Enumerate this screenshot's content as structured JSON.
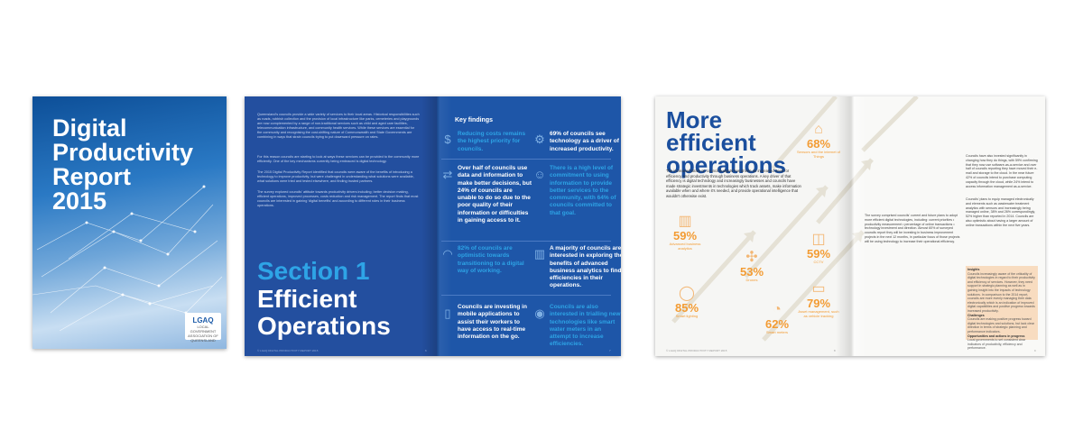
{
  "cover": {
    "title_lines": [
      "Digital",
      "Productivity",
      "Report",
      "2015"
    ],
    "logo_text": "LGAQ",
    "logo_sub": "LOCAL GOVERNMENT ASSOCIATION OF QUEENSLAND"
  },
  "section_page": {
    "para1": "Queensland's councils provide a wide variety of services to their local areas. Historical responsibilities such as roads, rubbish collection and the provision of local infrastructure like parks, cemeteries and playgrounds are now complemented by a range of non-traditional services such as child and aged care facilities, telecommunication infrastructure, and community health services. While these services are essential for the community and recognising the cost-shifting nature of Commonwealth and State Governments are combining in ways that strain councils trying to put downward pressure on rates.",
    "para2": "For this reason councils are starting to look at ways these services can be provided to the community more efficiently. One of the key mechanisms currently being embraced is digital technology.",
    "para3": "The 2015 Digital Productivity Report identified that councils were aware of the benefits of introducing a technology to improve productivity, but were challenged in understanding what solutions were available, what solutions were tried and tested elsewhere, and finding trusted partners.",
    "para4": "The survey explored councils' attitude towards productivity drivers including; better decision making, efficient operations, improved processes, costs reduction and risk management. The report finds that most councils are interested in gaining 'digital benefits' and according to different roles in their business operations.",
    "section_number": "Section 1",
    "section_title_1": "Efficient",
    "section_title_2": "Operations",
    "footer": "© LGAQ DIGITAL PRODUCTIVITY REPORT 2015",
    "page_no": "6"
  },
  "key_findings": {
    "title": "Key findings",
    "items": [
      {
        "text": "Reducing costs remains the highest priority for councils.",
        "style": "blue",
        "icon": "dollar-icon"
      },
      {
        "text": "69% of councils see technology as a driver of increased productivity.",
        "style": "white",
        "icon": "gear-icon"
      },
      {
        "text": "Over half of councils use data and information to make better decisions, but 24% of councils are unable to do so due to the poor quality of their information or difficulties in gaining access to it.",
        "style": "white",
        "icon": "arrows-icon"
      },
      {
        "text": "There is a high level of commitment to using information to provide better services to the community, with 64% of councils committed to that goal.",
        "style": "blue",
        "icon": "people-icon"
      },
      {
        "text": "82% of councils are optimistic towards transitioning to a digital way of working.",
        "style": "blue",
        "icon": "wifi-icon"
      },
      {
        "text": "A majority of councils are interested in exploring the benefits of advanced business analytics to find efficiencies in their operations.",
        "style": "white",
        "icon": "chart-icon"
      },
      {
        "text": "Councils are investing in mobile applications to assist their workers to have access to real-time information on the go.",
        "style": "white",
        "icon": "tablet-icon"
      },
      {
        "text": "Councils are also interested in trialling new technologies like smart water meters in an attempt to increase efficiencies.",
        "style": "blue",
        "icon": "meter-icon"
      }
    ],
    "page_no": "7"
  },
  "ops_page": {
    "title_1": "More",
    "title_2": "efficient",
    "title_3": "operations",
    "intro": "The increased strain on council budgets has driven an increased need for efficiency and productivity through business operations. A key driver of that efficiency is digital technology and increasingly businesses and councils have made strategic investments in technologies which track assets, make information available when and where it's needed, and provide operational intelligence that wouldn't otherwise exist.",
    "stats": [
      {
        "pct": "68%",
        "label": "Sensors and the internet of Things",
        "icon": "house-icon"
      },
      {
        "pct": "59%",
        "label": "Advanced business analytics",
        "icon": "bar-chart-icon"
      },
      {
        "pct": "53%",
        "label": "Drones",
        "icon": "drone-icon"
      },
      {
        "pct": "59%",
        "label": "CCTV",
        "icon": "camera-icon"
      },
      {
        "pct": "85%",
        "label": "Smart lighting",
        "icon": "bulb-icon"
      },
      {
        "pct": "62%",
        "label": "Smart meters",
        "icon": "meter-icon"
      },
      {
        "pct": "79%",
        "label": "Asset management, such as vehicle tracking",
        "icon": "vehicle-icon"
      }
    ],
    "survey_text": "The survey comprised councils' current and future plans to adopt more efficient digital technologies, including: current priorities • productivity measurement • percentage of online transactions • technology investment and direction. Almost 60% of surveyed councils report they will be investing in business improvement projects in the next 12 months, in particular focus of those projects will be using technology to increase their operational efficiency.",
    "right_col_1": "Councils have also invested significantly in changing how they do things, with 59% confirming that they now use software-as-a-service and over half of councils reporting they have moved their e-mail and storage to the cloud. In the near future 42% of councils intend to purchase computing capacity through the cloud, while 24% intend to access information management as-a-service.",
    "right_col_2": "Councils' plans to equip managed electronically and elements such as wastewater treatment analytics with sensors and increasingly being managed online, 38% and 26% correspondingly, 52% higher than reported in 2014. Councils are also optimistic about having a larger amount of online transactions within the next five years.",
    "insights_title": "Insights",
    "insights_text": "Councils increasingly aware of the criticality of digital technologies in regard to their productivity and efficiency of services. However, they need support in strategic planning as well as in gaining insight into the impacts of technology solutions. In comparison to the 2014 report, councils are more evenly managing their data electronically which is an indication of improved digital capabilities and positive progress towards increased productivity.",
    "challenges_title": "Challenges",
    "challenges_text": "Councils are making positive progress toward digital technologies and solutions, but lack clear direction in terms of strategic planning and performance indicators.",
    "opps_title": "Opportunities and actions in progress",
    "opps_text": "Local governments to set consistent clear indicators of productivity, efficiency and performance.",
    "footer": "© LGAQ DIGITAL PRODUCTIVITY REPORT 2015",
    "page_left": "8",
    "page_right": "9"
  }
}
